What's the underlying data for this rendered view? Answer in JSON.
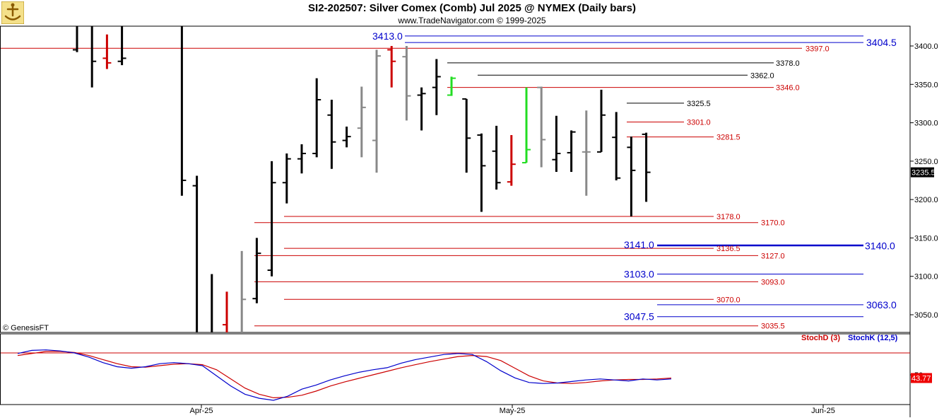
{
  "header": {
    "title": "SI2-202507:  Silver Comex (Comb) Jul 2025 @ NYMEX  (Daily bars)",
    "subtitle": "www.TradeNavigator.com © 1999-2025",
    "copyright": "© GenesisFT"
  },
  "colors": {
    "blue_line": "#0000cc",
    "red_line": "#cc0000",
    "black_line": "#000000",
    "up_bar": "#22dd22",
    "down_bar": "#ee0000",
    "gray_bar": "#888888",
    "last_price_bg": "#000000"
  },
  "chart_data": [
    {
      "type": "ohlc",
      "title": "SI2-202507:  Silver Comex (Comb) Jul 2025 @ NYMEX  (Daily bars)",
      "x_labels": [
        "Apr-25",
        "May-25",
        "Jun-25"
      ],
      "y_ticks": [
        3050.0,
        3100.0,
        3150.0,
        3200.0,
        3250.0,
        3300.0,
        3350.0,
        3400.0
      ],
      "ylim": [
        3010,
        3435
      ],
      "last_price": "3235.5",
      "bars": [
        {
          "i": 0,
          "o": 3395,
          "h": 3435,
          "l": 3392,
          "c": 3432,
          "color": "black"
        },
        {
          "i": 1,
          "o": 3435,
          "h": 3435,
          "l": 3346,
          "c": 3380,
          "color": "black"
        },
        {
          "i": 2,
          "o": 3384,
          "h": 3415,
          "l": 3370,
          "c": 3378,
          "color": "red"
        },
        {
          "i": 3,
          "o": 3380,
          "h": 3435,
          "l": 3375,
          "c": 3384,
          "color": "black"
        },
        {
          "i": 7,
          "o": 3435,
          "h": 3435,
          "l": 3205,
          "c": 3225,
          "color": "black"
        },
        {
          "i": 8,
          "o": 3218,
          "h": 3231,
          "l": 3010,
          "c": 3010,
          "color": "black"
        },
        {
          "i": 9,
          "o": 3010,
          "h": 3103,
          "l": 3010,
          "c": 3012,
          "color": "black"
        },
        {
          "i": 10,
          "o": 3037,
          "h": 3080,
          "l": 3010,
          "c": 3010,
          "color": "red"
        },
        {
          "i": 11,
          "o": 3010,
          "h": 3133,
          "l": 3010,
          "c": 3070,
          "color": "gray"
        },
        {
          "i": 12,
          "o": 3071,
          "h": 3150,
          "l": 3065,
          "c": 3130,
          "color": "black"
        },
        {
          "i": 13,
          "o": 3108,
          "h": 3250,
          "l": 3100,
          "c": 3222,
          "color": "black"
        },
        {
          "i": 14,
          "o": 3222,
          "h": 3260,
          "l": 3195,
          "c": 3253,
          "color": "black"
        },
        {
          "i": 15,
          "o": 3253,
          "h": 3272,
          "l": 3234,
          "c": 3260,
          "color": "black"
        },
        {
          "i": 16,
          "o": 3260,
          "h": 3358,
          "l": 3255,
          "c": 3330,
          "color": "black"
        },
        {
          "i": 17,
          "o": 3310,
          "h": 3330,
          "l": 3240,
          "c": 3275,
          "color": "black"
        },
        {
          "i": 18,
          "o": 3277,
          "h": 3295,
          "l": 3268,
          "c": 3282,
          "color": "black"
        },
        {
          "i": 19,
          "o": 3293,
          "h": 3347,
          "l": 3255,
          "c": 3320,
          "color": "gray"
        },
        {
          "i": 20,
          "o": 3277,
          "h": 3395,
          "l": 3235,
          "c": 3387,
          "color": "gray"
        },
        {
          "i": 21,
          "o": 3395,
          "h": 3400,
          "l": 3346,
          "c": 3380,
          "color": "red"
        },
        {
          "i": 22,
          "o": 3386,
          "h": 3400,
          "l": 3303,
          "c": 3335,
          "color": "gray"
        },
        {
          "i": 23,
          "o": 3336,
          "h": 3346,
          "l": 3290,
          "c": 3338,
          "color": "black"
        },
        {
          "i": 24,
          "o": 3346,
          "h": 3383,
          "l": 3310,
          "c": 3360,
          "color": "black"
        },
        {
          "i": 25,
          "o": 3336,
          "h": 3360,
          "l": 3335,
          "c": 3358,
          "color": "green"
        },
        {
          "i": 26,
          "o": 3331,
          "h": 3331,
          "l": 3235,
          "c": 3280,
          "color": "black"
        },
        {
          "i": 27,
          "o": 3284,
          "h": 3286,
          "l": 3184,
          "c": 3244,
          "color": "black"
        },
        {
          "i": 28,
          "o": 3263,
          "h": 3296,
          "l": 3213,
          "c": 3222,
          "color": "black"
        },
        {
          "i": 29,
          "o": 3223,
          "h": 3284,
          "l": 3218,
          "c": 3246,
          "color": "red"
        },
        {
          "i": 30,
          "o": 3248,
          "h": 3346,
          "l": 3248,
          "c": 3265,
          "color": "green"
        },
        {
          "i": 31,
          "o": 3346,
          "h": 3347,
          "l": 3242,
          "c": 3278,
          "color": "gray"
        },
        {
          "i": 32,
          "o": 3252,
          "h": 3309,
          "l": 3236,
          "c": 3260,
          "color": "black"
        },
        {
          "i": 33,
          "o": 3261,
          "h": 3290,
          "l": 3236,
          "c": 3288,
          "color": "black"
        },
        {
          "i": 34,
          "o": 3262,
          "h": 3316,
          "l": 3205,
          "c": 3262,
          "color": "gray"
        },
        {
          "i": 35,
          "o": 3262,
          "h": 3343,
          "l": 3262,
          "c": 3310,
          "color": "black"
        },
        {
          "i": 36,
          "o": 3281,
          "h": 3314,
          "l": 3225,
          "c": 3228,
          "color": "black"
        },
        {
          "i": 37,
          "o": 3268,
          "h": 3282,
          "l": 3178,
          "c": 3238,
          "color": "black"
        },
        {
          "i": 38,
          "o": 3285,
          "h": 3287,
          "l": 3197,
          "c": 3235.5,
          "color": "black"
        }
      ],
      "levels": [
        {
          "value": 3413.0,
          "label": "3413.0",
          "color": "blue",
          "side": "left"
        },
        {
          "value": 3404.5,
          "label": "3404.5",
          "color": "blue",
          "side": "right"
        },
        {
          "value": 3397.0,
          "label": "3397.0",
          "color": "red",
          "side": "mid"
        },
        {
          "value": 3378.0,
          "label": "3378.0",
          "color": "black",
          "side": "mid"
        },
        {
          "value": 3362.0,
          "label": "3362.0",
          "color": "black",
          "side": "mid"
        },
        {
          "value": 3346.0,
          "label": "3346.0",
          "color": "red",
          "side": "mid"
        },
        {
          "value": 3325.5,
          "label": "3325.5",
          "color": "black",
          "side": "mid"
        },
        {
          "value": 3301.0,
          "label": "3301.0",
          "color": "red",
          "side": "mid"
        },
        {
          "value": 3281.5,
          "label": "3281.5",
          "color": "red",
          "side": "mid"
        },
        {
          "value": 3178.0,
          "label": "3178.0",
          "color": "red",
          "side": "mid"
        },
        {
          "value": 3170.0,
          "label": "3170.0",
          "color": "red",
          "side": "mid"
        },
        {
          "value": 3141.0,
          "label": "3141.0",
          "color": "blue",
          "side": "left"
        },
        {
          "value": 3140.0,
          "label": "3140.0",
          "color": "blue",
          "side": "right"
        },
        {
          "value": 3136.5,
          "label": "3136.5",
          "color": "red",
          "side": "mid"
        },
        {
          "value": 3127.0,
          "label": "3127.0",
          "color": "red",
          "side": "mid"
        },
        {
          "value": 3103.0,
          "label": "3103.0",
          "color": "blue",
          "side": "left"
        },
        {
          "value": 3093.0,
          "label": "3093.0",
          "color": "red",
          "side": "mid"
        },
        {
          "value": 3070.0,
          "label": "3070.0",
          "color": "red",
          "side": "mid"
        },
        {
          "value": 3063.0,
          "label": "3063.0",
          "color": "blue",
          "side": "right"
        },
        {
          "value": 3047.5,
          "label": "3047.5",
          "color": "blue",
          "side": "left"
        },
        {
          "value": 3035.5,
          "label": "3035.5",
          "color": "red",
          "side": "mid"
        }
      ]
    },
    {
      "type": "line",
      "title": "",
      "legend": [
        "StochD (3)",
        "StochK (12,5)"
      ],
      "y_ticks": [
        50
      ],
      "ylim": [
        0,
        100
      ],
      "last_value": "43.77",
      "series": [
        {
          "name": "StochD (3)",
          "color": "red",
          "values": [
            88,
            92,
            96,
            96,
            94,
            88,
            80,
            72,
            66,
            65,
            68,
            71,
            72,
            70,
            60,
            42,
            24,
            12,
            5,
            6,
            10,
            18,
            28,
            36,
            43,
            50,
            57,
            64,
            70,
            76,
            81,
            86,
            88,
            86,
            78,
            63,
            48,
            38,
            34,
            33,
            35,
            38,
            40,
            41,
            41,
            42,
            43.77
          ]
        },
        {
          "name": "StochK (12,5)",
          "color": "blue",
          "values": [
            92,
            98,
            99,
            97,
            93,
            85,
            74,
            66,
            63,
            66,
            72,
            74,
            72,
            68,
            48,
            28,
            12,
            4,
            0,
            8,
            22,
            30,
            40,
            48,
            55,
            60,
            64,
            73,
            80,
            85,
            90,
            92,
            90,
            76,
            58,
            44,
            35,
            33,
            34,
            37,
            40,
            42,
            40,
            38,
            42,
            40,
            42
          ]
        }
      ]
    }
  ]
}
